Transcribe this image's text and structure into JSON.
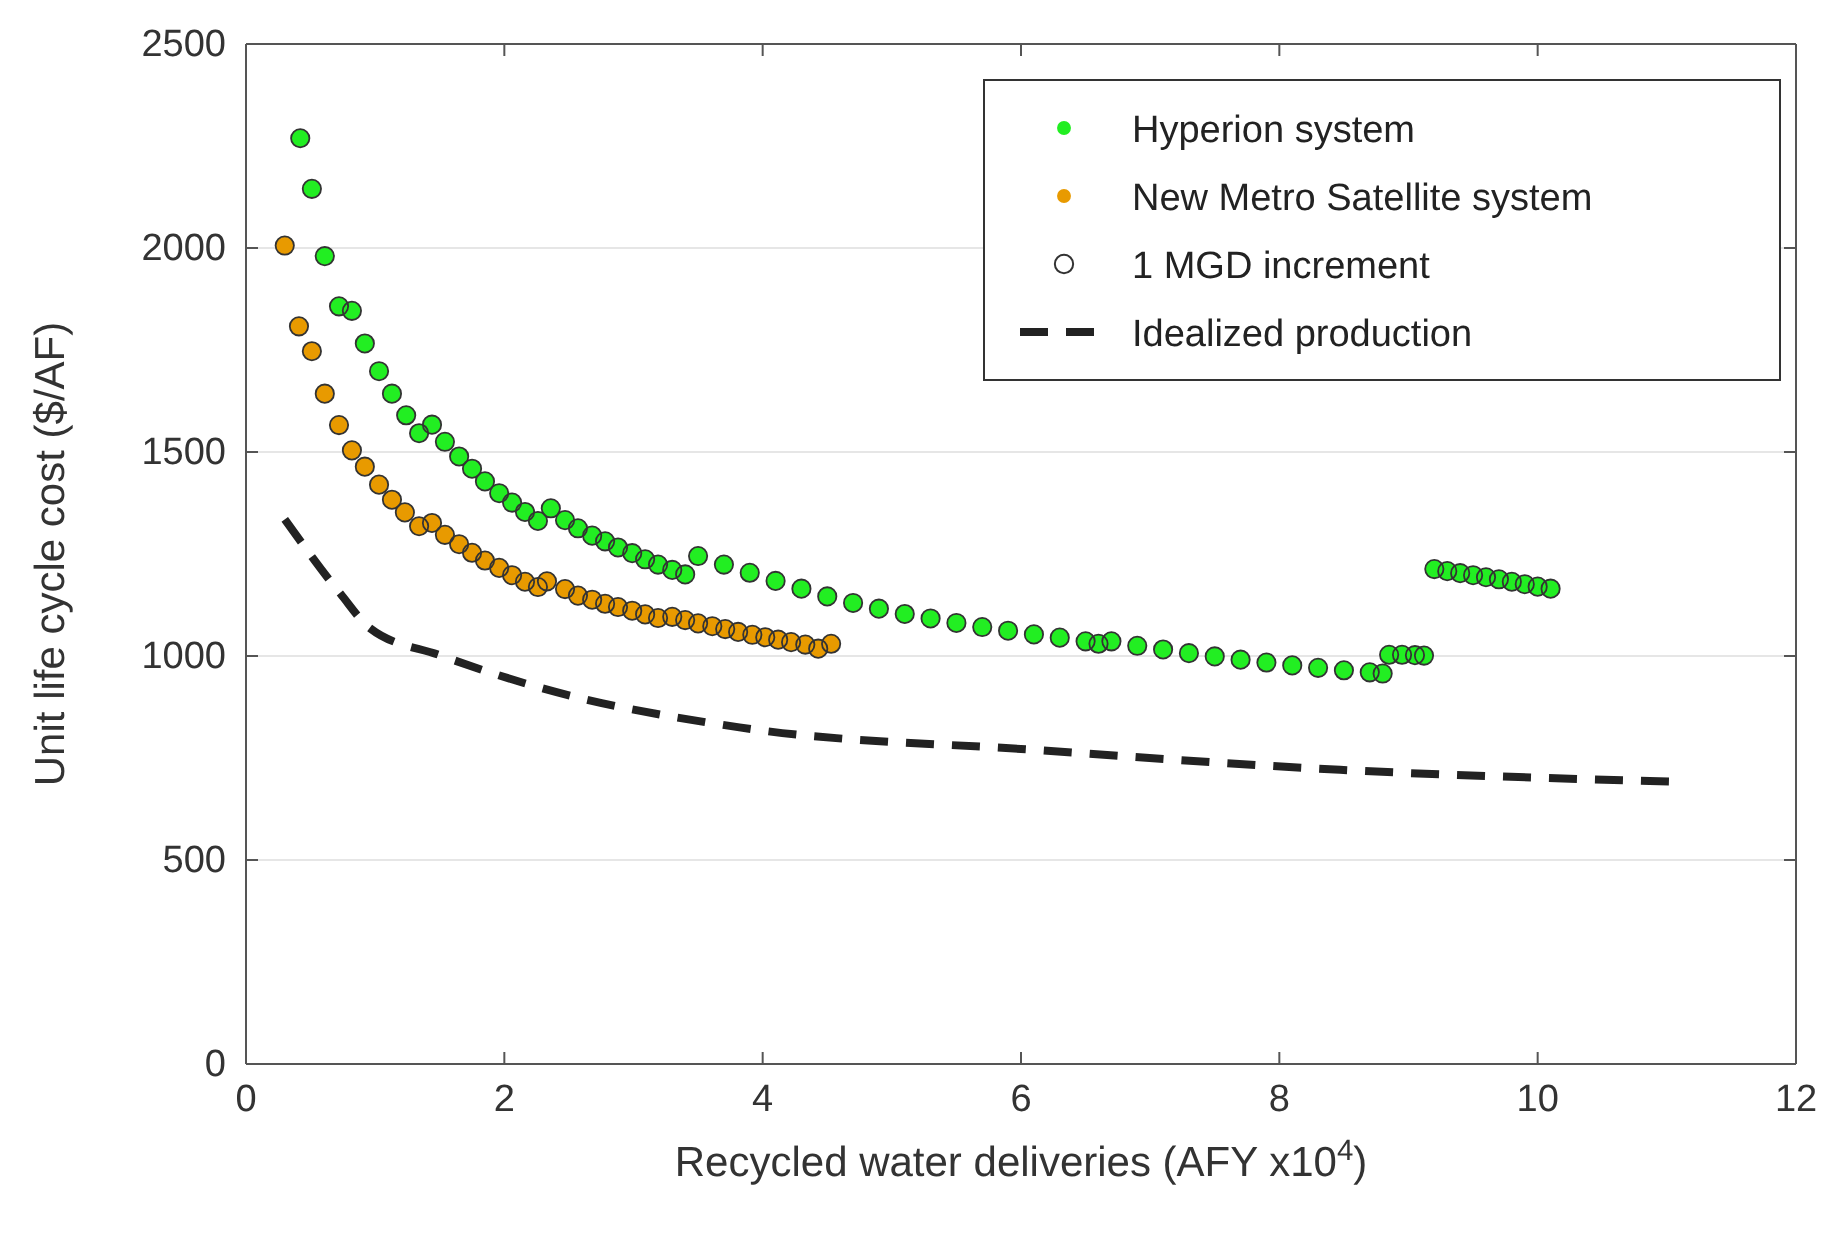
{
  "chart_data": {
    "type": "scatter",
    "xlabel": "Recycled water deliveries (AFY x10$^{4}$)",
    "ylabel": "Unit life cycle cost ($/AF)",
    "xlim": [
      0,
      12
    ],
    "xticks": [
      0,
      2,
      4,
      6,
      8,
      10,
      12
    ],
    "ylim": [
      0,
      2500
    ],
    "yticks": [
      0,
      500,
      1000,
      1500,
      2000,
      2500
    ],
    "grid": "y",
    "legend": "top right",
    "series": [
      {
        "name": "Hyperion system",
        "color": "#22ee22",
        "x": [
          0.42,
          0.51,
          0.61,
          0.72,
          0.82,
          0.92,
          1.03,
          1.13,
          1.24,
          1.34,
          1.44,
          1.54,
          1.65,
          1.75,
          1.85,
          1.96,
          2.06,
          2.16,
          2.26,
          2.36,
          2.47,
          2.57,
          2.68,
          2.78,
          2.88,
          2.99,
          3.09,
          3.19,
          3.3,
          3.4,
          3.5,
          3.7,
          3.9,
          4.1,
          4.3,
          4.5,
          4.7,
          4.9,
          5.1,
          5.3,
          5.5,
          5.7,
          5.9,
          6.1,
          6.3,
          6.5,
          6.6,
          6.7,
          6.9,
          7.1,
          7.3,
          7.5,
          7.7,
          7.9,
          8.1,
          8.3,
          8.5,
          8.7,
          8.8,
          8.85,
          8.95,
          9.05,
          9.12,
          9.2,
          9.3,
          9.4,
          9.5,
          9.6,
          9.7,
          9.8,
          9.9,
          10.0,
          10.1
        ],
        "values": [
          2269,
          2145,
          1980,
          1857,
          1846,
          1766,
          1698,
          1643,
          1590,
          1546,
          1567,
          1525,
          1489,
          1459,
          1428,
          1399,
          1376,
          1353,
          1331,
          1362,
          1333,
          1313,
          1295,
          1281,
          1266,
          1252,
          1237,
          1224,
          1211,
          1200,
          1245,
          1224,
          1204,
          1184,
          1165,
          1146,
          1130,
          1116,
          1103,
          1092,
          1081,
          1071,
          1062,
          1053,
          1045,
          1036,
          1030,
          1036,
          1025,
          1016,
          1007,
          999,
          991,
          984,
          977,
          971,
          965,
          960,
          957,
          1003,
          1003,
          1002,
          1001,
          1213,
          1208,
          1203,
          1198,
          1193,
          1188,
          1182,
          1176,
          1170,
          1165
        ]
      },
      {
        "name": "New Metro Satellite system",
        "color": "#e89a00",
        "x": [
          0.3,
          0.41,
          0.51,
          0.61,
          0.72,
          0.82,
          0.92,
          1.03,
          1.13,
          1.23,
          1.34,
          1.44,
          1.54,
          1.65,
          1.75,
          1.85,
          1.96,
          2.06,
          2.16,
          2.26,
          2.33,
          2.47,
          2.57,
          2.68,
          2.78,
          2.88,
          2.99,
          3.09,
          3.19,
          3.3,
          3.4,
          3.5,
          3.61,
          3.71,
          3.81,
          3.92,
          4.02,
          4.12,
          4.22,
          4.33,
          4.43,
          4.53
        ],
        "values": [
          2006,
          1808,
          1747,
          1643,
          1566,
          1504,
          1464,
          1420,
          1383,
          1352,
          1318,
          1326,
          1297,
          1274,
          1253,
          1234,
          1216,
          1198,
          1182,
          1169,
          1183,
          1164,
          1148,
          1138,
          1128,
          1120,
          1111,
          1102,
          1093,
          1096,
          1088,
          1080,
          1073,
          1066,
          1059,
          1052,
          1046,
          1040,
          1034,
          1028,
          1018,
          1030
        ]
      },
      {
        "name": "1 MGD increment",
        "color": "#333333",
        "marker": "circle",
        "x": [
          0.42,
          0.51,
          0.61,
          0.72,
          0.82,
          0.92,
          1.03,
          1.13,
          1.24,
          1.34,
          1.44,
          1.54,
          1.65,
          1.75,
          1.85,
          1.96,
          2.06,
          2.16,
          2.26,
          2.36,
          2.47,
          2.57,
          2.68,
          2.78,
          2.88,
          2.99,
          3.09,
          3.19,
          3.3,
          3.4,
          3.5,
          3.7,
          3.9,
          4.1,
          4.3,
          4.5,
          4.7,
          4.9,
          5.1,
          5.3,
          5.5,
          5.7,
          5.9,
          6.1,
          6.3,
          6.5,
          6.6,
          6.7,
          6.9,
          7.1,
          7.3,
          7.5,
          7.7,
          7.9,
          8.1,
          8.3,
          8.5,
          8.7,
          8.8,
          8.85,
          8.95,
          9.05,
          9.12,
          9.2,
          9.3,
          9.4,
          9.5,
          9.6,
          9.7,
          9.8,
          9.9,
          10.0,
          10.1,
          0.3,
          0.41,
          0.51,
          0.61,
          0.72,
          0.82,
          0.92,
          1.03,
          1.13,
          1.23,
          1.34,
          1.44,
          1.54,
          1.65,
          1.75,
          1.85,
          1.96,
          2.06,
          2.16,
          2.26,
          2.33,
          2.47,
          2.57,
          2.68,
          2.78,
          2.88,
          2.99,
          3.09,
          3.19,
          3.3,
          3.4,
          3.5,
          3.61,
          3.71,
          3.81,
          3.92,
          4.02,
          4.12,
          4.22,
          4.33,
          4.43,
          4.53
        ],
        "values": [
          2269,
          2145,
          1980,
          1857,
          1846,
          1766,
          1698,
          1643,
          1590,
          1546,
          1567,
          1525,
          1489,
          1459,
          1428,
          1399,
          1376,
          1353,
          1331,
          1362,
          1333,
          1313,
          1295,
          1281,
          1266,
          1252,
          1237,
          1224,
          1211,
          1200,
          1245,
          1224,
          1204,
          1184,
          1165,
          1146,
          1130,
          1116,
          1103,
          1092,
          1081,
          1071,
          1062,
          1053,
          1045,
          1036,
          1030,
          1036,
          1025,
          1016,
          1007,
          999,
          991,
          984,
          977,
          971,
          965,
          960,
          957,
          1003,
          1003,
          1002,
          1001,
          1213,
          1208,
          1203,
          1198,
          1193,
          1188,
          1182,
          1176,
          1170,
          1165,
          2006,
          1808,
          1747,
          1643,
          1566,
          1504,
          1464,
          1420,
          1383,
          1352,
          1318,
          1326,
          1297,
          1274,
          1253,
          1234,
          1216,
          1198,
          1182,
          1169,
          1183,
          1164,
          1148,
          1138,
          1128,
          1120,
          1111,
          1102,
          1093,
          1096,
          1088,
          1080,
          1073,
          1066,
          1059,
          1052,
          1046,
          1040,
          1034,
          1028,
          1018,
          1030
        ]
      },
      {
        "name": "Idealized production",
        "color": "#222222",
        "type": "line",
        "line_style": "dashed",
        "x": [
          0.3,
          0.73,
          0.96,
          1.5,
          2.28,
          3.82,
          6.15,
          8.47,
          11.06
        ],
        "values": [
          1335,
          1153,
          1068,
          1002,
          922,
          825,
          769,
          721,
          692
        ]
      }
    ]
  }
}
